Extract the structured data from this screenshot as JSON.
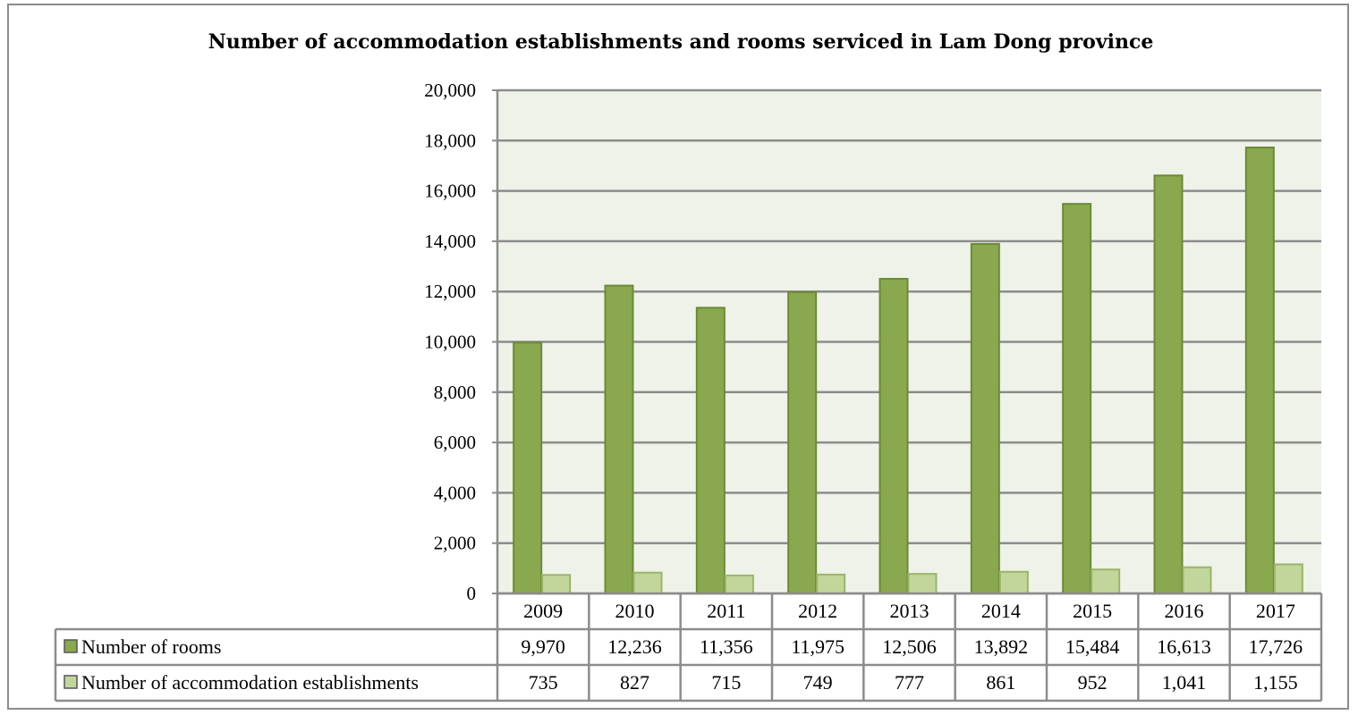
{
  "chart_data": {
    "type": "bar",
    "title": "Number of accommodation establishments and rooms serviced in Lam Dong province",
    "categories": [
      "2009",
      "2010",
      "2011",
      "2012",
      "2013",
      "2014",
      "2015",
      "2016",
      "2017"
    ],
    "series": [
      {
        "name": "Number of rooms",
        "values": [
          9970,
          12236,
          11356,
          11975,
          12506,
          13892,
          15484,
          16613,
          17726
        ],
        "labels": [
          "9,970",
          "12,236",
          "11,356",
          "11,975",
          "12,506",
          "13,892",
          "15,484",
          "16,613",
          "17,726"
        ],
        "color": "#8aa84f"
      },
      {
        "name": "Number of accommodation establishments",
        "values": [
          735,
          827,
          715,
          749,
          777,
          861,
          952,
          1041,
          1155
        ],
        "labels": [
          "735",
          "827",
          "715",
          "749",
          "777",
          "861",
          "952",
          "1,041",
          "1,155"
        ],
        "color": "#c2d69b"
      }
    ],
    "ylim": [
      0,
      20000
    ],
    "yticks": [
      "0",
      "2,000",
      "4,000",
      "6,000",
      "8,000",
      "10,000",
      "12,000",
      "14,000",
      "16,000",
      "18,000",
      "20,000"
    ],
    "grid": true,
    "plot_background": "#eef2e8",
    "data_table": true
  }
}
